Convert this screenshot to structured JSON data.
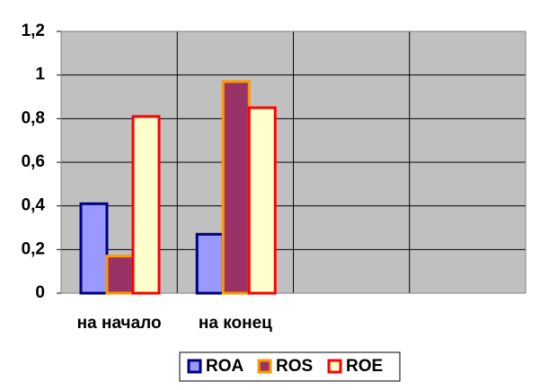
{
  "chart_data": {
    "type": "bar",
    "categories": [
      "на начало",
      "на конец",
      null,
      null
    ],
    "series": [
      {
        "name": "ROA",
        "color": "#9999ff",
        "edge_color": "#000080",
        "values": [
          0.41,
          0.27,
          null,
          null
        ]
      },
      {
        "name": "ROS",
        "color": "#993366",
        "edge_color": "#ff9900",
        "values": [
          0.17,
          0.97,
          null,
          null
        ]
      },
      {
        "name": "ROE",
        "color": "#ffffcc",
        "edge_color": "#ff0000",
        "values": [
          0.81,
          0.85,
          null,
          null
        ]
      }
    ],
    "ylim": [
      0,
      1.2
    ],
    "yticks": [
      0,
      {
        "value": 0.2,
        "label": "0,2"
      },
      {
        "value": 0.4,
        "label": "0,4"
      },
      {
        "value": 0.6,
        "label": "0,6"
      },
      {
        "value": 0.8,
        "label": "0,8"
      },
      1,
      {
        "value": 1.2,
        "label": "1,2"
      }
    ],
    "grid": true,
    "plot_background": "#c0c0c0",
    "legend": "bottom"
  }
}
